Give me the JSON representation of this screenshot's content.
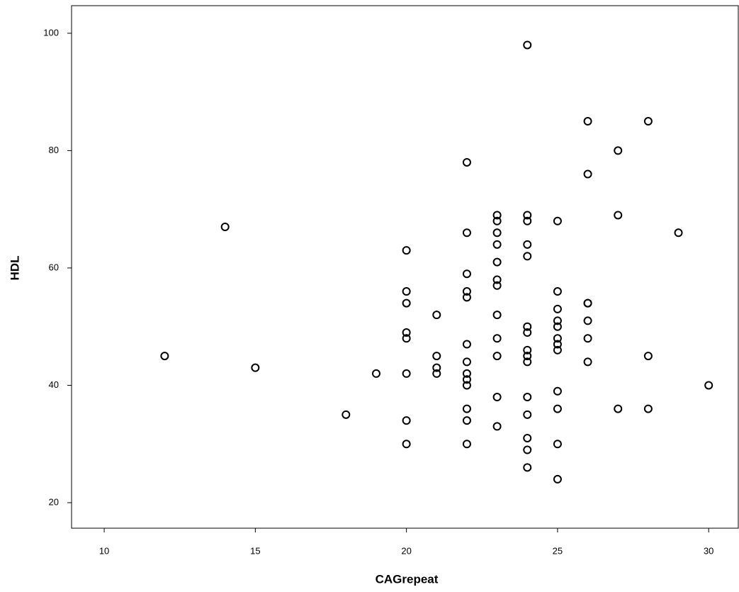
{
  "chart_data": {
    "type": "scatter",
    "x_label": "CAGrepeat",
    "y_label": "HDL",
    "x": [
      12,
      14,
      15,
      18,
      19,
      20,
      20,
      20,
      20,
      20,
      20,
      20,
      20,
      21,
      21,
      21,
      21,
      22,
      22,
      22,
      22,
      22,
      22,
      22,
      22,
      22,
      22,
      22,
      22,
      22,
      23,
      23,
      23,
      23,
      23,
      23,
      23,
      23,
      23,
      23,
      23,
      23,
      24,
      24,
      24,
      24,
      24,
      24,
      24,
      24,
      24,
      24,
      24,
      24,
      24,
      24,
      24,
      25,
      25,
      25,
      25,
      25,
      25,
      25,
      25,
      25,
      25,
      25,
      25,
      26,
      26,
      26,
      26,
      26,
      26,
      26,
      27,
      27,
      27,
      28,
      28,
      28,
      29,
      30
    ],
    "values": [
      45,
      67,
      43,
      35,
      42,
      63,
      56,
      54,
      49,
      48,
      42,
      34,
      30,
      52,
      45,
      43,
      42,
      78,
      66,
      59,
      56,
      55,
      47,
      44,
      42,
      41,
      40,
      36,
      34,
      30,
      69,
      68,
      66,
      64,
      61,
      58,
      57,
      52,
      48,
      45,
      38,
      33,
      98,
      69,
      68,
      64,
      62,
      50,
      49,
      46,
      45,
      44,
      38,
      35,
      31,
      29,
      26,
      68,
      56,
      53,
      51,
      50,
      48,
      47,
      46,
      39,
      36,
      30,
      24,
      85,
      76,
      54,
      51,
      48,
      44,
      54,
      80,
      69,
      36,
      85,
      45,
      36,
      66,
      40
    ],
    "color": "#000000",
    "xlim": [
      8.92,
      30.98
    ],
    "ylim": [
      15.65,
      104.7
    ],
    "xticks": [
      10,
      15,
      20,
      25,
      30
    ],
    "yticks": [
      20,
      40,
      60,
      80,
      100
    ],
    "grid": false
  }
}
